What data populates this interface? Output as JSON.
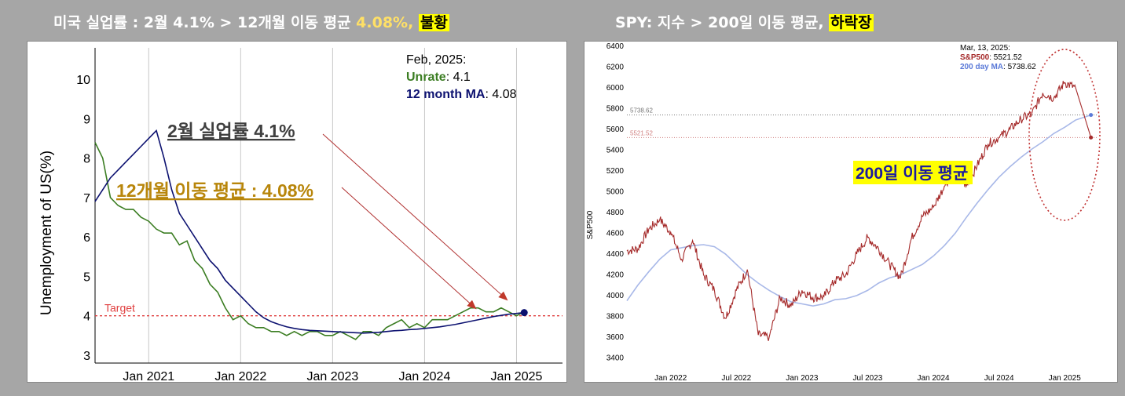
{
  "left": {
    "title": {
      "prefix": "미국 실업률 : 2월 4.1% > 12개월 이동 평균 ",
      "highlight": "4.08%,",
      "box": "불황"
    },
    "info": {
      "date": "Feb, 2025:",
      "unrate_label": "Unrate",
      "unrate_value": ": 4.1",
      "ma_label": "12 month MA",
      "ma_value": ": 4.08"
    },
    "annotations": {
      "unrate": "2월 실업률 4.1%",
      "ma": "12개월 이동 평균 : 4.08%"
    },
    "target_label": "Target",
    "colors": {
      "unrate": "#3b7d22",
      "ma": "#0c1170",
      "target": "#e04040",
      "arrow": "#b03030",
      "ma_annot": "#b8860b",
      "grid": "#c8c8c8"
    }
  },
  "right": {
    "title": {
      "prefix": "SPY: 지수 > 200일 이동 평균, ",
      "box": "하락장"
    },
    "info": {
      "date": "Mar, 13, 2025:",
      "spx_label": "S&P500",
      "spx_value": ": 5521.52",
      "ma_label": "200 day MA",
      "ma_value": ": 5738.62"
    },
    "ref_labels": {
      "ma": "5738.62",
      "spx": "5521.52"
    },
    "annotation": "200일 이동 평균",
    "colors": {
      "spx": "#a52a2a",
      "ma": "#a8b8e8",
      "circle": "#c03030",
      "annot_bg": "#ffff00",
      "annot_text": "#1a1aa0"
    }
  },
  "chart_data": [
    {
      "type": "line",
      "title": "미국 실업률 : 2월 4.1% > 12개월 이동 평균 4.08%, 불황",
      "xlabel": "",
      "ylabel": "Unemployment of US(%)",
      "x_ticks": [
        "Jan 2021",
        "Jan 2022",
        "Jan 2023",
        "Jan 2024",
        "Jan 2025"
      ],
      "y_ticks": [
        3,
        4,
        5,
        6,
        7,
        8,
        9,
        10
      ],
      "xlim": [
        "2020-06",
        "2025-07"
      ],
      "ylim": [
        2.8,
        10.8
      ],
      "target": 4.0,
      "grid": "vertical",
      "series": [
        {
          "name": "Unrate",
          "x": [
            "2020-06",
            "2020-07",
            "2020-08",
            "2020-09",
            "2020-10",
            "2020-11",
            "2020-12",
            "2021-01",
            "2021-02",
            "2021-03",
            "2021-04",
            "2021-05",
            "2021-06",
            "2021-07",
            "2021-08",
            "2021-09",
            "2021-10",
            "2021-11",
            "2021-12",
            "2022-01",
            "2022-02",
            "2022-03",
            "2022-04",
            "2022-05",
            "2022-06",
            "2022-07",
            "2022-08",
            "2022-09",
            "2022-10",
            "2022-11",
            "2022-12",
            "2023-01",
            "2023-02",
            "2023-03",
            "2023-04",
            "2023-05",
            "2023-06",
            "2023-07",
            "2023-08",
            "2023-09",
            "2023-10",
            "2023-11",
            "2023-12",
            "2024-01",
            "2024-02",
            "2024-03",
            "2024-04",
            "2024-05",
            "2024-06",
            "2024-07",
            "2024-08",
            "2024-09",
            "2024-10",
            "2024-11",
            "2024-12",
            "2025-01",
            "2025-02"
          ],
          "values": [
            8.4,
            8.0,
            7.0,
            6.8,
            6.7,
            6.7,
            6.5,
            6.4,
            6.2,
            6.1,
            6.1,
            5.8,
            5.9,
            5.4,
            5.2,
            4.8,
            4.6,
            4.2,
            3.9,
            4.0,
            3.8,
            3.7,
            3.7,
            3.6,
            3.6,
            3.5,
            3.6,
            3.5,
            3.6,
            3.6,
            3.5,
            3.5,
            3.6,
            3.5,
            3.4,
            3.6,
            3.6,
            3.5,
            3.7,
            3.8,
            3.9,
            3.7,
            3.8,
            3.7,
            3.9,
            3.9,
            3.9,
            4.0,
            4.1,
            4.2,
            4.2,
            4.1,
            4.1,
            4.2,
            4.1,
            4.0,
            4.1
          ]
        },
        {
          "name": "12 month MA",
          "x": [
            "2020-06",
            "2020-07",
            "2020-08",
            "2020-09",
            "2020-10",
            "2020-11",
            "2020-12",
            "2021-01",
            "2021-02",
            "2021-03",
            "2021-04",
            "2021-05",
            "2021-06",
            "2021-07",
            "2021-08",
            "2021-09",
            "2021-10",
            "2021-11",
            "2021-12",
            "2022-01",
            "2022-02",
            "2022-03",
            "2022-04",
            "2022-05",
            "2022-06",
            "2022-07",
            "2022-08",
            "2022-09",
            "2022-10",
            "2022-11",
            "2022-12",
            "2023-01",
            "2023-02",
            "2023-03",
            "2023-04",
            "2023-05",
            "2023-06",
            "2023-07",
            "2023-08",
            "2023-09",
            "2023-10",
            "2023-11",
            "2023-12",
            "2024-01",
            "2024-02",
            "2024-03",
            "2024-04",
            "2024-05",
            "2024-06",
            "2024-07",
            "2024-08",
            "2024-09",
            "2024-10",
            "2024-11",
            "2024-12",
            "2025-01",
            "2025-02"
          ],
          "values": [
            6.9,
            7.2,
            7.5,
            7.7,
            7.9,
            8.1,
            8.3,
            8.5,
            8.7,
            8.0,
            7.2,
            6.6,
            6.3,
            6.0,
            5.7,
            5.4,
            5.2,
            4.9,
            4.7,
            4.5,
            4.3,
            4.1,
            3.95,
            3.85,
            3.78,
            3.72,
            3.68,
            3.65,
            3.63,
            3.62,
            3.61,
            3.6,
            3.59,
            3.58,
            3.57,
            3.56,
            3.57,
            3.58,
            3.6,
            3.62,
            3.63,
            3.65,
            3.66,
            3.68,
            3.7,
            3.72,
            3.75,
            3.78,
            3.82,
            3.86,
            3.9,
            3.94,
            3.98,
            4.01,
            4.04,
            4.06,
            4.08
          ]
        }
      ]
    },
    {
      "type": "line",
      "title": "SPY: 지수 > 200일 이동 평균, 하락장",
      "xlabel": "",
      "ylabel": "S&P500",
      "x_ticks": [
        "Jan 2022",
        "Jul 2022",
        "Jan 2023",
        "Jul 2023",
        "Jan 2024",
        "Jul 2024",
        "Jan 2025"
      ],
      "y_ticks": [
        3400,
        3600,
        3800,
        4000,
        4200,
        4400,
        4600,
        4800,
        5000,
        5200,
        5400,
        5600,
        5800,
        6000,
        6200,
        6400
      ],
      "xlim": [
        "2021-09",
        "2025-03-31"
      ],
      "ylim": [
        3350,
        6400
      ],
      "grid": "off",
      "series": [
        {
          "name": "S&P500",
          "x": [
            "2021-09",
            "2021-10",
            "2021-11",
            "2021-12",
            "2022-01",
            "2022-02",
            "2022-03",
            "2022-04",
            "2022-05",
            "2022-06",
            "2022-07",
            "2022-08",
            "2022-09",
            "2022-10",
            "2022-11",
            "2022-12",
            "2023-01",
            "2023-02",
            "2023-03",
            "2023-04",
            "2023-05",
            "2023-06",
            "2023-07",
            "2023-08",
            "2023-09",
            "2023-10",
            "2023-11",
            "2023-12",
            "2024-01",
            "2024-02",
            "2024-03",
            "2024-04",
            "2024-05",
            "2024-06",
            "2024-07",
            "2024-08",
            "2024-09",
            "2024-10",
            "2024-11",
            "2024-12",
            "2025-01",
            "2025-02",
            "2025-03-13"
          ],
          "values": [
            4430,
            4450,
            4640,
            4730,
            4610,
            4350,
            4530,
            4200,
            4050,
            3780,
            4050,
            4250,
            3620,
            3600,
            3980,
            3900,
            4050,
            3980,
            3990,
            4140,
            4200,
            4400,
            4560,
            4450,
            4300,
            4170,
            4550,
            4760,
            4850,
            5050,
            5230,
            5050,
            5250,
            5460,
            5520,
            5600,
            5700,
            5750,
            5950,
            5900,
            6050,
            6000,
            5521.52
          ]
        },
        {
          "name": "200 day MA",
          "x": [
            "2021-09",
            "2021-10",
            "2021-11",
            "2021-12",
            "2022-01",
            "2022-02",
            "2022-03",
            "2022-04",
            "2022-05",
            "2022-06",
            "2022-07",
            "2022-08",
            "2022-09",
            "2022-10",
            "2022-11",
            "2022-12",
            "2023-01",
            "2023-02",
            "2023-03",
            "2023-04",
            "2023-05",
            "2023-06",
            "2023-07",
            "2023-08",
            "2023-09",
            "2023-10",
            "2023-11",
            "2023-12",
            "2024-01",
            "2024-02",
            "2024-03",
            "2024-04",
            "2024-05",
            "2024-06",
            "2024-07",
            "2024-08",
            "2024-09",
            "2024-10",
            "2024-11",
            "2024-12",
            "2025-01",
            "2025-02",
            "2025-03-13"
          ],
          "values": [
            3950,
            4100,
            4230,
            4350,
            4440,
            4460,
            4480,
            4490,
            4470,
            4400,
            4300,
            4200,
            4120,
            4050,
            3990,
            3940,
            3920,
            3900,
            3920,
            3960,
            3970,
            4000,
            4050,
            4120,
            4170,
            4200,
            4250,
            4300,
            4380,
            4480,
            4600,
            4750,
            4890,
            5020,
            5140,
            5240,
            5330,
            5410,
            5480,
            5560,
            5620,
            5690,
            5738.62
          ]
        }
      ]
    }
  ]
}
